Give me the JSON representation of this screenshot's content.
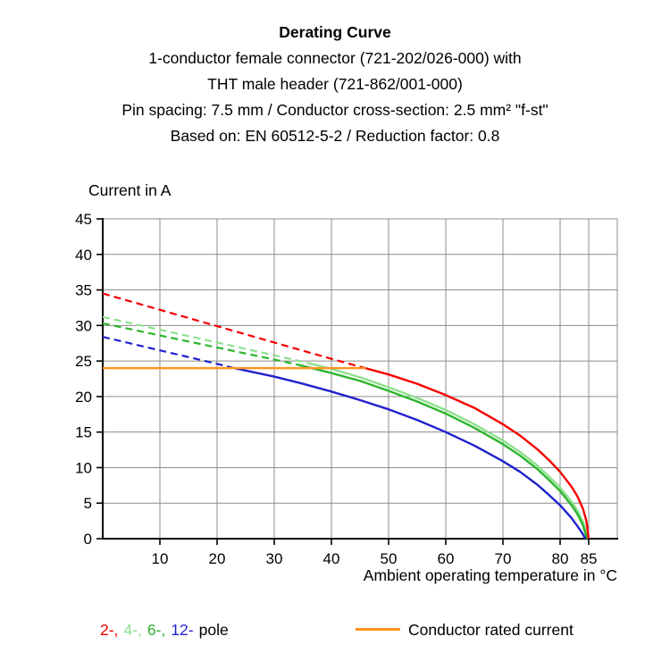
{
  "header": {
    "title": "Derating Curve",
    "lines": [
      "1-conductor female connector (721-202/026-000) with",
      "THT male header (721-862/001-000)",
      "Pin spacing: 7.5 mm / Conductor cross-section: 2.5 mm² \"f-st\"",
      "Based on: EN 60512-5-2 / Reduction factor: 0.8"
    ]
  },
  "chart_data": {
    "type": "line",
    "title": "Derating Curve",
    "ylabel": "Current in A",
    "xlabel": "Ambient operating temperature in °C",
    "xlim": [
      0,
      90
    ],
    "ylim": [
      0,
      45
    ],
    "xticks": [
      10,
      20,
      30,
      40,
      50,
      60,
      70,
      80,
      85
    ],
    "yticks": [
      0,
      5,
      10,
      15,
      20,
      25,
      30,
      35,
      40,
      45
    ],
    "grid": true,
    "grid_color": "#8c8c8c",
    "axis_color": "#000000",
    "series": [
      {
        "name": "4-pole",
        "color": "#8ee08e",
        "dashed": [
          [
            0,
            31.2
          ],
          [
            10,
            29.4
          ],
          [
            20,
            27.6
          ],
          [
            30,
            25.8
          ],
          [
            36,
            24.7
          ]
        ],
        "solid": [
          [
            36,
            24.7
          ],
          [
            40,
            23.9
          ],
          [
            45,
            22.7
          ],
          [
            50,
            21.3
          ],
          [
            55,
            19.8
          ],
          [
            60,
            18.1
          ],
          [
            65,
            16.1
          ],
          [
            70,
            13.8
          ],
          [
            73,
            12.2
          ],
          [
            76,
            10.3
          ],
          [
            78,
            8.8
          ],
          [
            80,
            7.2
          ],
          [
            82,
            5.2
          ],
          [
            83,
            4.0
          ],
          [
            84,
            2.4
          ],
          [
            84.8,
            0
          ]
        ]
      },
      {
        "name": "6-pole",
        "color": "#2eb42e",
        "dashed": [
          [
            0,
            30.3
          ],
          [
            10,
            28.6
          ],
          [
            20,
            26.9
          ],
          [
            30,
            25.2
          ],
          [
            34,
            24.5
          ]
        ],
        "solid": [
          [
            34,
            24.5
          ],
          [
            40,
            23.3
          ],
          [
            45,
            22.2
          ],
          [
            50,
            20.8
          ],
          [
            55,
            19.3
          ],
          [
            60,
            17.6
          ],
          [
            65,
            15.6
          ],
          [
            70,
            13.3
          ],
          [
            73,
            11.7
          ],
          [
            76,
            9.8
          ],
          [
            78,
            8.3
          ],
          [
            80,
            6.7
          ],
          [
            82,
            4.7
          ],
          [
            83,
            3.5
          ],
          [
            84,
            1.9
          ],
          [
            84.7,
            0
          ]
        ]
      },
      {
        "name": "12-pole",
        "color": "#2121cd",
        "dashed": [
          [
            0,
            28.4
          ],
          [
            10,
            26.5
          ],
          [
            20,
            24.6
          ],
          [
            23,
            24.0
          ]
        ],
        "solid": [
          [
            23,
            24.0
          ],
          [
            30,
            22.8
          ],
          [
            35,
            21.8
          ],
          [
            40,
            20.7
          ],
          [
            45,
            19.5
          ],
          [
            50,
            18.2
          ],
          [
            55,
            16.7
          ],
          [
            60,
            15.0
          ],
          [
            65,
            13.1
          ],
          [
            70,
            10.9
          ],
          [
            73,
            9.4
          ],
          [
            76,
            7.6
          ],
          [
            78,
            6.2
          ],
          [
            80,
            4.7
          ],
          [
            82,
            2.9
          ],
          [
            83,
            1.8
          ],
          [
            84,
            0.6
          ],
          [
            84.4,
            0
          ]
        ]
      },
      {
        "name": "2-pole",
        "color": "#f40000",
        "dashed": [
          [
            0,
            34.5
          ],
          [
            10,
            32.2
          ],
          [
            20,
            29.9
          ],
          [
            30,
            27.6
          ],
          [
            40,
            25.3
          ],
          [
            45,
            24.2
          ]
        ],
        "solid": [
          [
            45,
            24.2
          ],
          [
            50,
            23.1
          ],
          [
            55,
            21.8
          ],
          [
            60,
            20.2
          ],
          [
            65,
            18.4
          ],
          [
            70,
            16.1
          ],
          [
            73,
            14.5
          ],
          [
            76,
            12.6
          ],
          [
            78,
            11.1
          ],
          [
            80,
            9.4
          ],
          [
            82,
            7.3
          ],
          [
            83,
            6.0
          ],
          [
            84,
            4.2
          ],
          [
            84.6,
            2.5
          ],
          [
            85,
            0
          ]
        ]
      },
      {
        "name": "Conductor rated current",
        "color": "#ff931e",
        "solid": [
          [
            0,
            24
          ],
          [
            46,
            24
          ]
        ]
      }
    ]
  },
  "legend": {
    "pole_items": [
      {
        "label": "2-,",
        "color": "#f40000"
      },
      {
        "label": "4-,",
        "color": "#8ee08e"
      },
      {
        "label": "6-,",
        "color": "#2eb42e"
      },
      {
        "label": "12-",
        "color": "#2121cd"
      }
    ],
    "suffix": "pole",
    "rated": {
      "label": "Conductor rated current",
      "color": "#ff931e"
    }
  }
}
